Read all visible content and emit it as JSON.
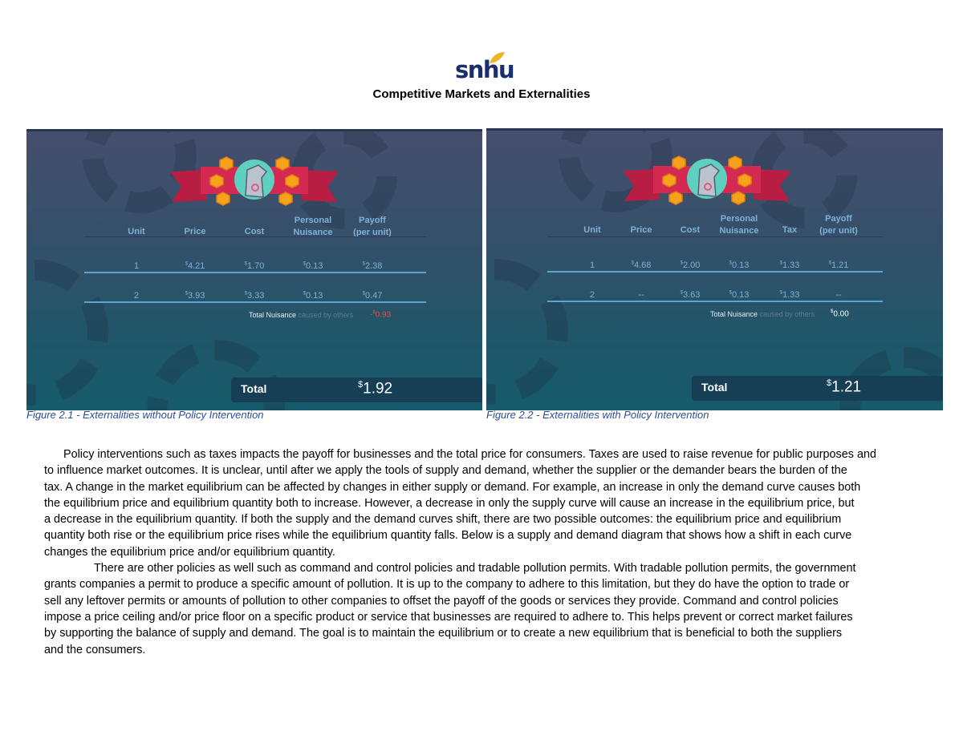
{
  "logo": {
    "text": "snhu",
    "leaf_color": "#f0b323",
    "text_color": "#1b2f6e"
  },
  "document": {
    "title": "Competitive Markets and Externalities"
  },
  "figures": [
    {
      "caption": "Figure 2.1 - Externalities without Policy Intervention",
      "headers": [
        "Unit",
        "Price",
        "Cost",
        "Personal",
        "Nuisance",
        "Payoff",
        "(per unit)"
      ],
      "rows": [
        {
          "unit": "1",
          "price": "4.21",
          "cost": "1.70",
          "nuisance": "0.13",
          "payoff": "2.38"
        },
        {
          "unit": "2",
          "price": "3.93",
          "cost": "3.33",
          "nuisance": "0.13",
          "payoff": "0.47"
        }
      ],
      "total_nuisance_label": "Total Nuisance",
      "total_nuisance_sub": "caused by others",
      "total_nuisance_sign": "-",
      "total_nuisance_value": "0.93",
      "total_nuisance_color": "#d9534f",
      "total_label": "Total",
      "total_value": "1.92",
      "currency": "$"
    },
    {
      "caption": "Figure 2.2 - Externalities with Policy Intervention",
      "headers": [
        "Unit",
        "Price",
        "Cost",
        "Personal",
        "Nuisance",
        "Tax",
        "Payoff",
        "(per unit)"
      ],
      "rows": [
        {
          "unit": "1",
          "price": "4.68",
          "cost": "2.00",
          "nuisance": "0.13",
          "tax": "1.33",
          "payoff": "1.21"
        },
        {
          "unit": "2",
          "price": "--",
          "cost": "3.63",
          "nuisance": "0.13",
          "tax": "1.33",
          "payoff": "--"
        }
      ],
      "total_nuisance_label": "Total Nuisance",
      "total_nuisance_sub": "caused by others",
      "total_nuisance_value": "0.00",
      "total_nuisance_color": "#ffffff",
      "total_label": "Total",
      "total_value": "1.21",
      "currency": "$"
    }
  ],
  "body": {
    "paragraph1_lines": [
      "Policy interventions such as taxes impacts the payoff for businesses and the total price for consumers.  Taxes are used to raise revenue for public purposes and",
      "to influence market outcomes.  It is unclear, until after we apply the tools of supply and demand, whether the supplier or the demander bears the burden of the",
      "tax.  A change in the market equilibrium can be affected by changes in either supply or demand.  For example, an increase in only the demand curve causes both",
      "the equilibrium price and equilibrium quantity both to increase.  However, a decrease in only the supply curve will cause an increase in the equilibrium price, but",
      "a decrease in the equilibrium quantity.  If both the supply and the demand curves shift, there are two possible outcomes:  the equilibrium price and equilibrium",
      "quantity both rise or the equilibrium price rises while the equilibrium quantity falls.  Below is a supply and demand diagram that shows how a shift in each curve",
      "changes the equilibrium price and/or equilibrium quantity."
    ],
    "paragraph2_lines": [
      "There are other policies as well such as command and control policies and tradable pollution permits.  With tradable pollution permits, the government",
      "grants companies a permit to produce a specific amount of pollution.  It is up to the company to adhere to this limitation, but they do have the option to trade or",
      "sell any leftover permits or amounts of pollution to other companies to offset the payoff of the goods or services they provide.  Command and control policies",
      "impose a price ceiling and/or price floor on a specific product or service that businesses are required to adhere to.  This helps prevent or correct market failures",
      "by supporting the balance of supply and demand.  The goal is to maintain the equilibrium or to create a new equilibrium that is beneficial to both the suppliers",
      "and the consumers."
    ]
  }
}
